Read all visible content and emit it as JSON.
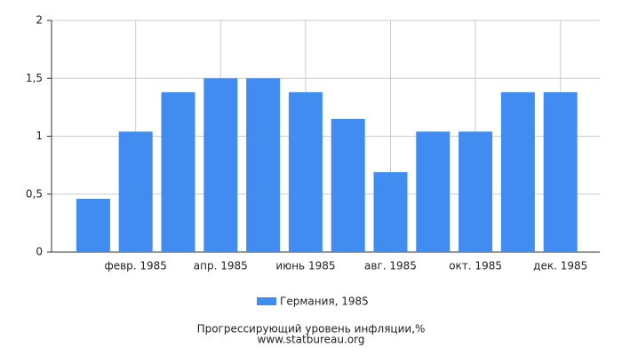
{
  "chart_data": {
    "type": "bar",
    "title": "Прогрессирующий уровень инфляции,%",
    "source": "www.statbureau.org",
    "categories": [
      null,
      "февр. 1985",
      null,
      "апр. 1985",
      null,
      "июнь 1985",
      null,
      "авг. 1985",
      null,
      "окт. 1985",
      null,
      "дек. 1985"
    ],
    "series": [
      {
        "name": "Германия, 1985",
        "color": "#418cf0",
        "values": [
          0.46,
          1.04,
          1.38,
          1.5,
          1.5,
          1.38,
          1.15,
          0.69,
          1.04,
          1.04,
          1.38,
          1.38
        ]
      }
    ],
    "ylim": [
      0,
      2
    ],
    "yticks": [
      0,
      {
        "value": 0.5,
        "label": "0,5"
      },
      1,
      {
        "value": 1.5,
        "label": "1,5"
      },
      2
    ],
    "grid": true
  }
}
